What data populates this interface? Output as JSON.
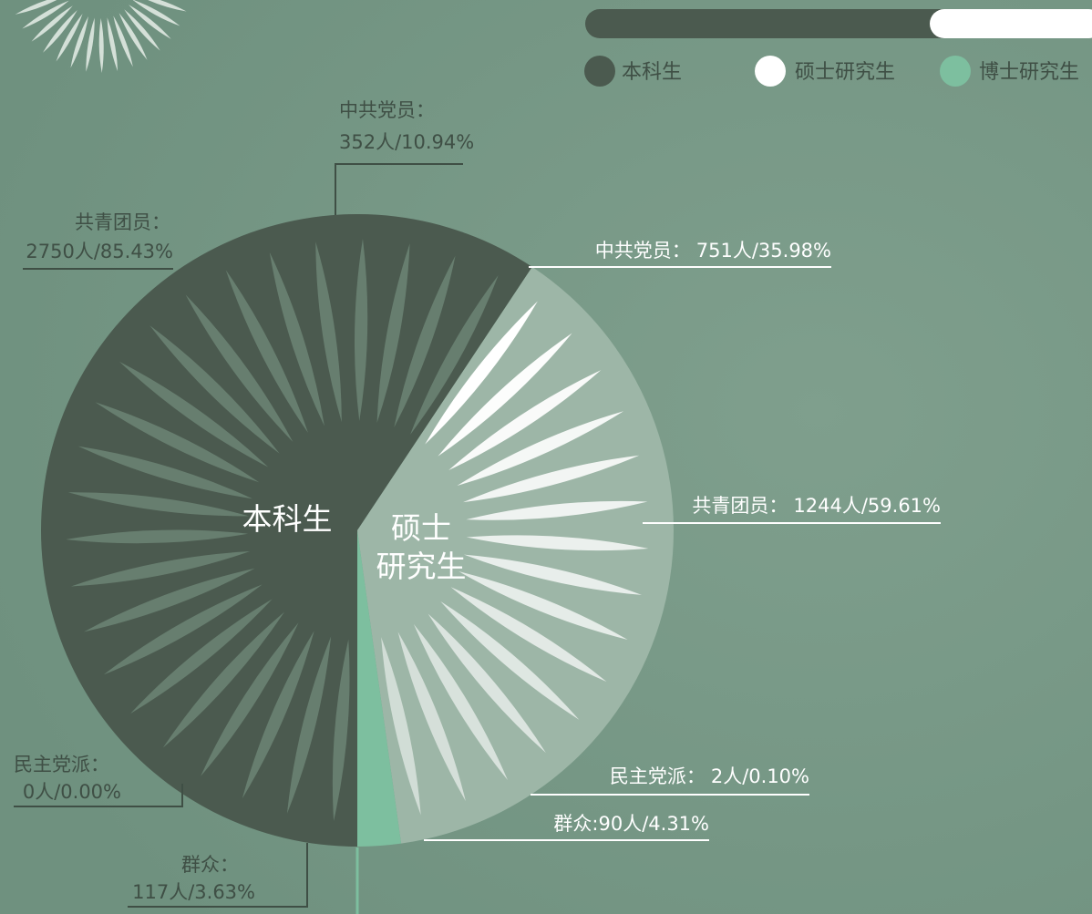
{
  "chart_data": {
    "type": "pie",
    "series": [
      {
        "name": "本科生",
        "color": "#4b5a4f",
        "center_label": "本科生",
        "items": [
          {
            "name": "中共党员：",
            "count": 352,
            "label": "352人/10.94%"
          },
          {
            "name": "共青团员：",
            "count": 2750,
            "label": "2750人/85.43%"
          },
          {
            "name": "民主党派：",
            "count": 0,
            "label": "0人/0.00%"
          },
          {
            "name": "群众：",
            "count": 117,
            "label": "117人/3.63%"
          }
        ]
      },
      {
        "name": "硕士研究生",
        "color": "#9db6a7",
        "center_label": "硕士\n研究生",
        "items": [
          {
            "name": "中共党员：",
            "count": 751,
            "label": "751人/35.98%"
          },
          {
            "name": "共青团员：",
            "count": 1244,
            "label": "1244人/59.61%"
          },
          {
            "name": "民主党派：",
            "count": 2,
            "label": "2人/0.10%"
          },
          {
            "name": "群众:",
            "count": 90,
            "label": "90人/4.31%"
          }
        ]
      },
      {
        "name": "博士研究生",
        "color": "#7dbf9f",
        "value": 120
      }
    ]
  }
}
